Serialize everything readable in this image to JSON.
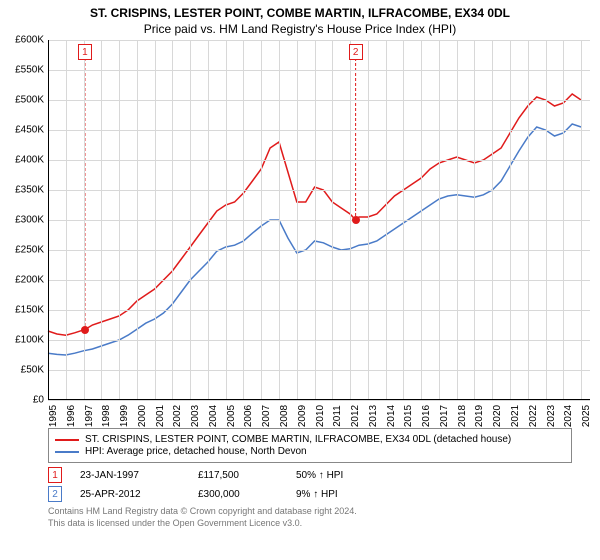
{
  "title": "ST. CRISPINS, LESTER POINT, COMBE MARTIN, ILFRACOMBE, EX34 0DL",
  "subtitle": "Price paid vs. HM Land Registry's House Price Index (HPI)",
  "chart": {
    "type": "line",
    "background_color": "#ffffff",
    "grid_color": "#d8d8d8",
    "title_fontsize": 12,
    "label_fontsize": 10,
    "xlim": [
      1995,
      2025.5
    ],
    "ylim": [
      0,
      600
    ],
    "ytick_step": 50,
    "ytick_prefix": "£",
    "ytick_suffix": "K",
    "xticks": [
      1995,
      1996,
      1997,
      1998,
      1999,
      2000,
      2001,
      2002,
      2003,
      2004,
      2005,
      2006,
      2007,
      2008,
      2009,
      2010,
      2011,
      2012,
      2013,
      2014,
      2015,
      2016,
      2017,
      2018,
      2019,
      2020,
      2021,
      2022,
      2023,
      2024,
      2025
    ],
    "xtick_rotation": -90,
    "line_width": 1.5,
    "series": [
      {
        "name": "ST. CRISPINS, LESTER POINT, COMBE MARTIN, ILFRACOMBE, EX34 0DL (detached house)",
        "color": "#e01b1b",
        "points": [
          [
            1995.0,
            115
          ],
          [
            1995.5,
            110
          ],
          [
            1996.0,
            108
          ],
          [
            1996.5,
            112
          ],
          [
            1997.08,
            117.5
          ],
          [
            1997.5,
            125
          ],
          [
            1998.0,
            130
          ],
          [
            1998.5,
            135
          ],
          [
            1999.0,
            140
          ],
          [
            1999.5,
            150
          ],
          [
            2000.0,
            165
          ],
          [
            2000.5,
            175
          ],
          [
            2001.0,
            185
          ],
          [
            2001.5,
            200
          ],
          [
            2002.0,
            215
          ],
          [
            2002.5,
            235
          ],
          [
            2003.0,
            255
          ],
          [
            2003.5,
            275
          ],
          [
            2004.0,
            295
          ],
          [
            2004.5,
            315
          ],
          [
            2005.0,
            325
          ],
          [
            2005.5,
            330
          ],
          [
            2006.0,
            345
          ],
          [
            2006.5,
            365
          ],
          [
            2007.0,
            385
          ],
          [
            2007.5,
            420
          ],
          [
            2008.0,
            430
          ],
          [
            2008.5,
            380
          ],
          [
            2009.0,
            330
          ],
          [
            2009.5,
            330
          ],
          [
            2010.0,
            355
          ],
          [
            2010.5,
            350
          ],
          [
            2011.0,
            330
          ],
          [
            2011.5,
            320
          ],
          [
            2012.0,
            310
          ],
          [
            2012.31,
            300
          ],
          [
            2012.5,
            305
          ],
          [
            2013.0,
            305
          ],
          [
            2013.5,
            310
          ],
          [
            2014.0,
            325
          ],
          [
            2014.5,
            340
          ],
          [
            2015.0,
            350
          ],
          [
            2015.5,
            360
          ],
          [
            2016.0,
            370
          ],
          [
            2016.5,
            385
          ],
          [
            2017.0,
            395
          ],
          [
            2017.5,
            400
          ],
          [
            2018.0,
            405
          ],
          [
            2018.5,
            400
          ],
          [
            2019.0,
            395
          ],
          [
            2019.5,
            400
          ],
          [
            2020.0,
            410
          ],
          [
            2020.5,
            420
          ],
          [
            2021.0,
            445
          ],
          [
            2021.5,
            470
          ],
          [
            2022.0,
            490
          ],
          [
            2022.5,
            505
          ],
          [
            2023.0,
            500
          ],
          [
            2023.5,
            490
          ],
          [
            2024.0,
            495
          ],
          [
            2024.5,
            510
          ],
          [
            2025.0,
            500
          ]
        ]
      },
      {
        "name": "HPI: Average price, detached house, North Devon",
        "color": "#4a7bc8",
        "points": [
          [
            1995.0,
            78
          ],
          [
            1995.5,
            76
          ],
          [
            1996.0,
            75
          ],
          [
            1996.5,
            78
          ],
          [
            1997.0,
            82
          ],
          [
            1997.5,
            85
          ],
          [
            1998.0,
            90
          ],
          [
            1998.5,
            95
          ],
          [
            1999.0,
            100
          ],
          [
            1999.5,
            108
          ],
          [
            2000.0,
            118
          ],
          [
            2000.5,
            128
          ],
          [
            2001.0,
            135
          ],
          [
            2001.5,
            145
          ],
          [
            2002.0,
            160
          ],
          [
            2002.5,
            180
          ],
          [
            2003.0,
            200
          ],
          [
            2003.5,
            215
          ],
          [
            2004.0,
            230
          ],
          [
            2004.5,
            248
          ],
          [
            2005.0,
            255
          ],
          [
            2005.5,
            258
          ],
          [
            2006.0,
            265
          ],
          [
            2006.5,
            278
          ],
          [
            2007.0,
            290
          ],
          [
            2007.5,
            300
          ],
          [
            2008.0,
            300
          ],
          [
            2008.5,
            270
          ],
          [
            2009.0,
            245
          ],
          [
            2009.5,
            250
          ],
          [
            2010.0,
            265
          ],
          [
            2010.5,
            262
          ],
          [
            2011.0,
            255
          ],
          [
            2011.5,
            250
          ],
          [
            2012.0,
            252
          ],
          [
            2012.5,
            258
          ],
          [
            2013.0,
            260
          ],
          [
            2013.5,
            265
          ],
          [
            2014.0,
            275
          ],
          [
            2014.5,
            285
          ],
          [
            2015.0,
            295
          ],
          [
            2015.5,
            305
          ],
          [
            2016.0,
            315
          ],
          [
            2016.5,
            325
          ],
          [
            2017.0,
            335
          ],
          [
            2017.5,
            340
          ],
          [
            2018.0,
            342
          ],
          [
            2018.5,
            340
          ],
          [
            2019.0,
            338
          ],
          [
            2019.5,
            342
          ],
          [
            2020.0,
            350
          ],
          [
            2020.5,
            365
          ],
          [
            2021.0,
            390
          ],
          [
            2021.5,
            415
          ],
          [
            2022.0,
            438
          ],
          [
            2022.5,
            455
          ],
          [
            2023.0,
            450
          ],
          [
            2023.5,
            440
          ],
          [
            2024.0,
            445
          ],
          [
            2024.5,
            460
          ],
          [
            2025.0,
            455
          ]
        ]
      }
    ],
    "markers": [
      {
        "n": "1",
        "x": 1997.08,
        "y": 117.5,
        "color": "#e01b1b"
      },
      {
        "n": "2",
        "x": 2012.31,
        "y": 300,
        "color": "#e01b1b"
      }
    ]
  },
  "legend": {
    "items": [
      {
        "color": "#e01b1b",
        "label": "ST. CRISPINS, LESTER POINT, COMBE MARTIN, ILFRACOMBE, EX34 0DL (detached house)"
      },
      {
        "color": "#4a7bc8",
        "label": "HPI: Average price, detached house, North Devon"
      }
    ]
  },
  "transactions": [
    {
      "n": "1",
      "color": "#e01b1b",
      "date": "23-JAN-1997",
      "price": "£117,500",
      "delta": "50% ↑ HPI"
    },
    {
      "n": "2",
      "color": "#4a7bc8",
      "date": "25-APR-2012",
      "price": "£300,000",
      "delta": "9% ↑ HPI"
    }
  ],
  "attribution": [
    "Contains HM Land Registry data © Crown copyright and database right 2024.",
    "This data is licensed under the Open Government Licence v3.0."
  ]
}
